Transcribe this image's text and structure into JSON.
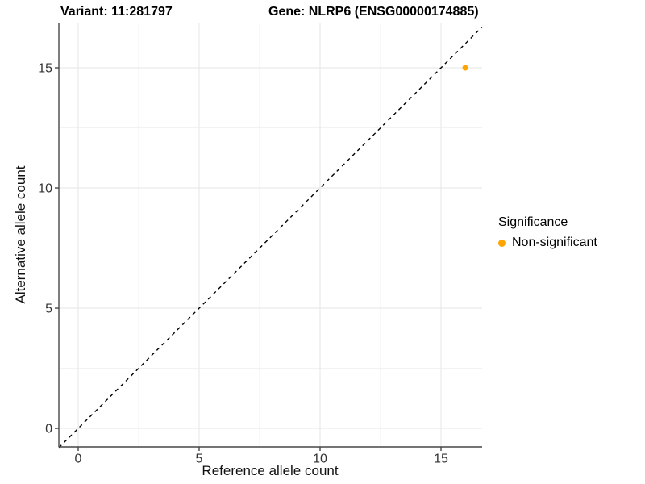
{
  "chart_data": {
    "type": "scatter",
    "title_left": "Variant: 11:281797",
    "title_right": "Gene: NLRP6 (ENSG00000174885)",
    "xlabel": "Reference allele count",
    "ylabel": "Alternative allele count",
    "xlim": [
      -0.8,
      16.7
    ],
    "ylim": [
      -0.77,
      16.88
    ],
    "x_major_ticks": [
      0,
      5,
      10,
      15
    ],
    "y_major_ticks": [
      0,
      5,
      10,
      15
    ],
    "x_minor_ticks": [
      2.5,
      7.5,
      12.5
    ],
    "y_minor_ticks": [
      2.5,
      7.5,
      12.5
    ],
    "grid": "major+minor",
    "reference_line": {
      "type": "identity",
      "slope": 1,
      "intercept": 0,
      "style": "dashed",
      "color": "#000000"
    },
    "series": [
      {
        "name": "Non-significant",
        "color": "#FFA500",
        "points": [
          {
            "x": 16,
            "y": 15
          }
        ]
      }
    ],
    "legend": {
      "title": "Significance",
      "position": "right",
      "entries": [
        {
          "label": "Non-significant",
          "color": "#FFA500"
        }
      ]
    },
    "style": {
      "grid_major_color": "#e5e5e5",
      "grid_minor_color": "#f2f2f2",
      "axis_line_color": "#474747",
      "tick_label_color": "#333333"
    }
  }
}
